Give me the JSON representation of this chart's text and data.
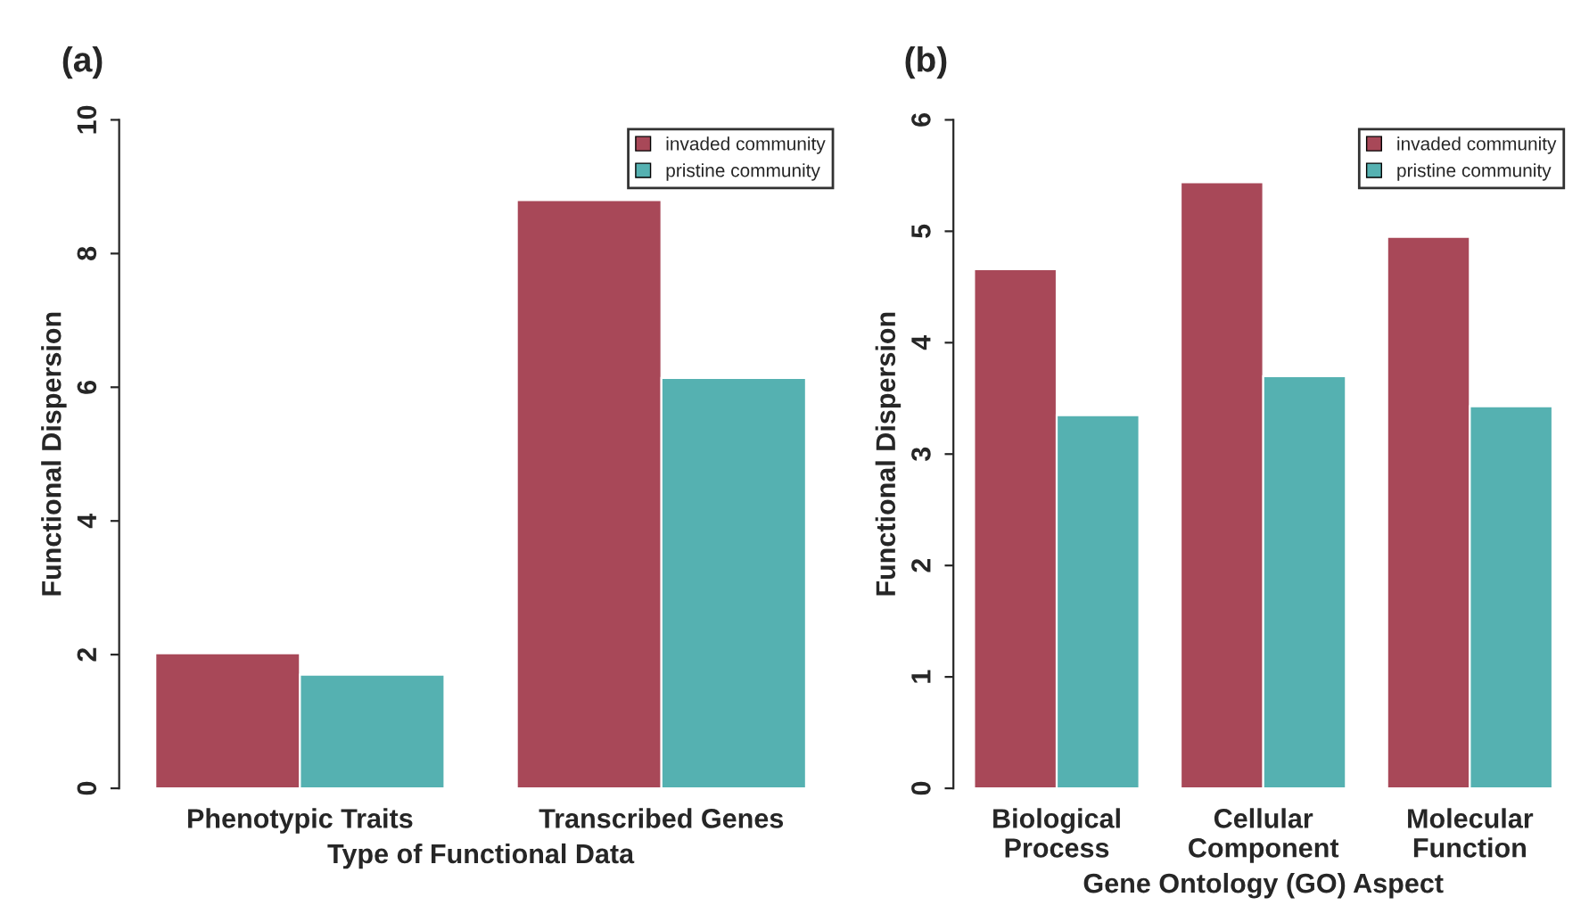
{
  "chart_data": [
    {
      "type": "bar",
      "title": "(a)",
      "xlabel": "Type of Functional Data",
      "ylabel": "Functional Dispersion",
      "categories": [
        "Phenotypic Traits",
        "Transcribed Genes"
      ],
      "ylim": [
        0,
        10
      ],
      "yticks": [
        0,
        2,
        4,
        6,
        8,
        10
      ],
      "legend": "top right",
      "grid": false,
      "series": [
        {
          "name": "invaded community",
          "color": "#a84858",
          "values": [
            2.02,
            8.8
          ]
        },
        {
          "name": "pristine community",
          "color": "#55b1b1",
          "values": [
            1.7,
            6.14
          ]
        }
      ]
    },
    {
      "type": "bar",
      "title": "(b)",
      "xlabel": "Gene Ontology (GO) Aspect",
      "ylabel": "Functional Dispersion",
      "categories": [
        "Biological\nProcess",
        "Cellular\nComponent",
        "Molecular\nFunction"
      ],
      "ylim": [
        0,
        6
      ],
      "yticks": [
        0,
        1,
        2,
        3,
        4,
        5,
        6
      ],
      "legend": "top right",
      "grid": false,
      "series": [
        {
          "name": "invaded community",
          "color": "#a84858",
          "values": [
            4.66,
            5.44,
            4.95
          ]
        },
        {
          "name": "pristine community",
          "color": "#55b1b1",
          "values": [
            3.35,
            3.7,
            3.43
          ]
        }
      ]
    }
  ]
}
